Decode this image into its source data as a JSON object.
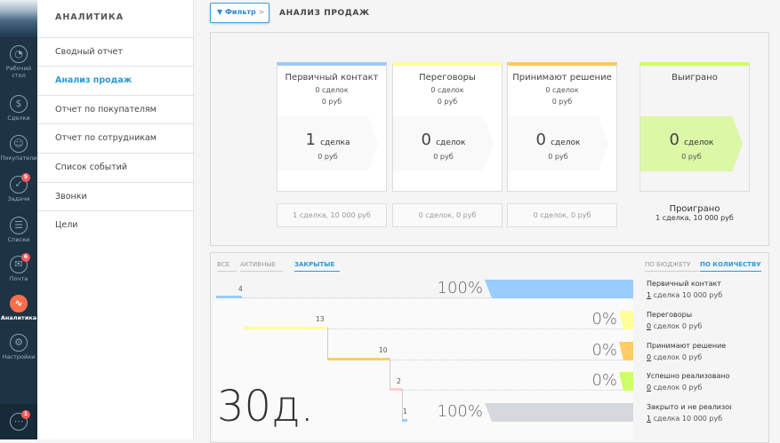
{
  "nav": {
    "items": [
      {
        "label": "Рабочий стол",
        "icon": "dashboard-icon",
        "glyph": "◔"
      },
      {
        "label": "Сделки",
        "icon": "dollar-icon",
        "glyph": "$"
      },
      {
        "label": "Покупатели",
        "icon": "customers-icon",
        "glyph": "☺"
      },
      {
        "label": "Задачи",
        "icon": "check-icon",
        "glyph": "✓",
        "badge": "5"
      },
      {
        "label": "Списки",
        "icon": "list-icon",
        "glyph": "☰"
      },
      {
        "label": "Почта",
        "icon": "mail-icon",
        "glyph": "✉",
        "badge": "6"
      },
      {
        "label": "Аналитика",
        "icon": "analytics-icon",
        "glyph": "∿"
      },
      {
        "label": "Настройки",
        "icon": "settings-icon",
        "glyph": "⚙"
      }
    ],
    "chat_badge": "1",
    "chat_glyph": "⋯"
  },
  "menu": {
    "title": "АНАЛИТИКА",
    "items": [
      "Сводный отчет",
      "Анализ продаж",
      "Отчет по покупателям",
      "Отчет по сотрудникам",
      "Список событий",
      "Звонки",
      "Цели"
    ],
    "active": 1
  },
  "header": {
    "filter": "Фильтр",
    "filter_chevron": ">",
    "title": "АНАЛИЗ ПРОДАЖ"
  },
  "funnel": {
    "stages": [
      {
        "name": "Первичный контакт",
        "deals": "0 сделок",
        "sum": "0 руб",
        "big": "1",
        "big_label": "сделка",
        "big_sum": "0 руб",
        "bottom": "1 сделка, 10 000 руб",
        "color": "#9ccaff"
      },
      {
        "name": "Переговоры",
        "deals": "0 сделок",
        "sum": "0 руб",
        "big": "0",
        "big_label": "сделок",
        "big_sum": "0 руб",
        "bottom": "0 сделок, 0 руб",
        "color": "#fdfd98"
      },
      {
        "name": "Принимают решение",
        "deals": "0 сделок",
        "sum": "0 руб",
        "big": "0",
        "big_label": "сделок",
        "big_sum": "0 руб",
        "bottom": "0 сделок, 0 руб",
        "color": "#ffc866"
      }
    ],
    "won": {
      "name": "Выиграно",
      "big": "0",
      "big_label": "сделок",
      "big_sum": "0 руб",
      "color": "#ccff66"
    },
    "lost": {
      "name": "Проиграно",
      "detail": "1 сделка, 10 000 руб"
    }
  },
  "stats": {
    "tabs": [
      "ВСЕ",
      "АКТИВНЫЕ",
      "ЗАКРЫТЫЕ"
    ],
    "active_tab": 2,
    "modes": [
      "ПО БЮДЖЕТУ",
      "ПО КОЛИЧЕСТВУ"
    ],
    "active_mode": 1,
    "days": "30д.",
    "ladder": [
      "4",
      "13",
      "10",
      "2",
      "1"
    ],
    "rows": [
      {
        "pct": "100%",
        "value": 100,
        "name": "Первичный контакт",
        "count": "1",
        "rest": " сделка 10 000 руб",
        "color": "#99ccff"
      },
      {
        "pct": "0%",
        "value": 0,
        "name": "Переговоры",
        "count": "0",
        "rest": " сделок 0 руб",
        "color": "#ffff99"
      },
      {
        "pct": "0%",
        "value": 0,
        "name": "Принимают решение",
        "count": "0",
        "rest": " сделок 0 руб",
        "color": "#ffcc66"
      },
      {
        "pct": "0%",
        "value": 0,
        "name": "Успешно реализовано",
        "count": "0",
        "rest": " сделок 0 руб",
        "color": "#ccff66"
      },
      {
        "pct": "100%",
        "value": 100,
        "name": "Закрыто и не реализовано",
        "count": "1",
        "rest": " сделка 10 000 руб",
        "color": "#d5d8dc"
      }
    ]
  }
}
